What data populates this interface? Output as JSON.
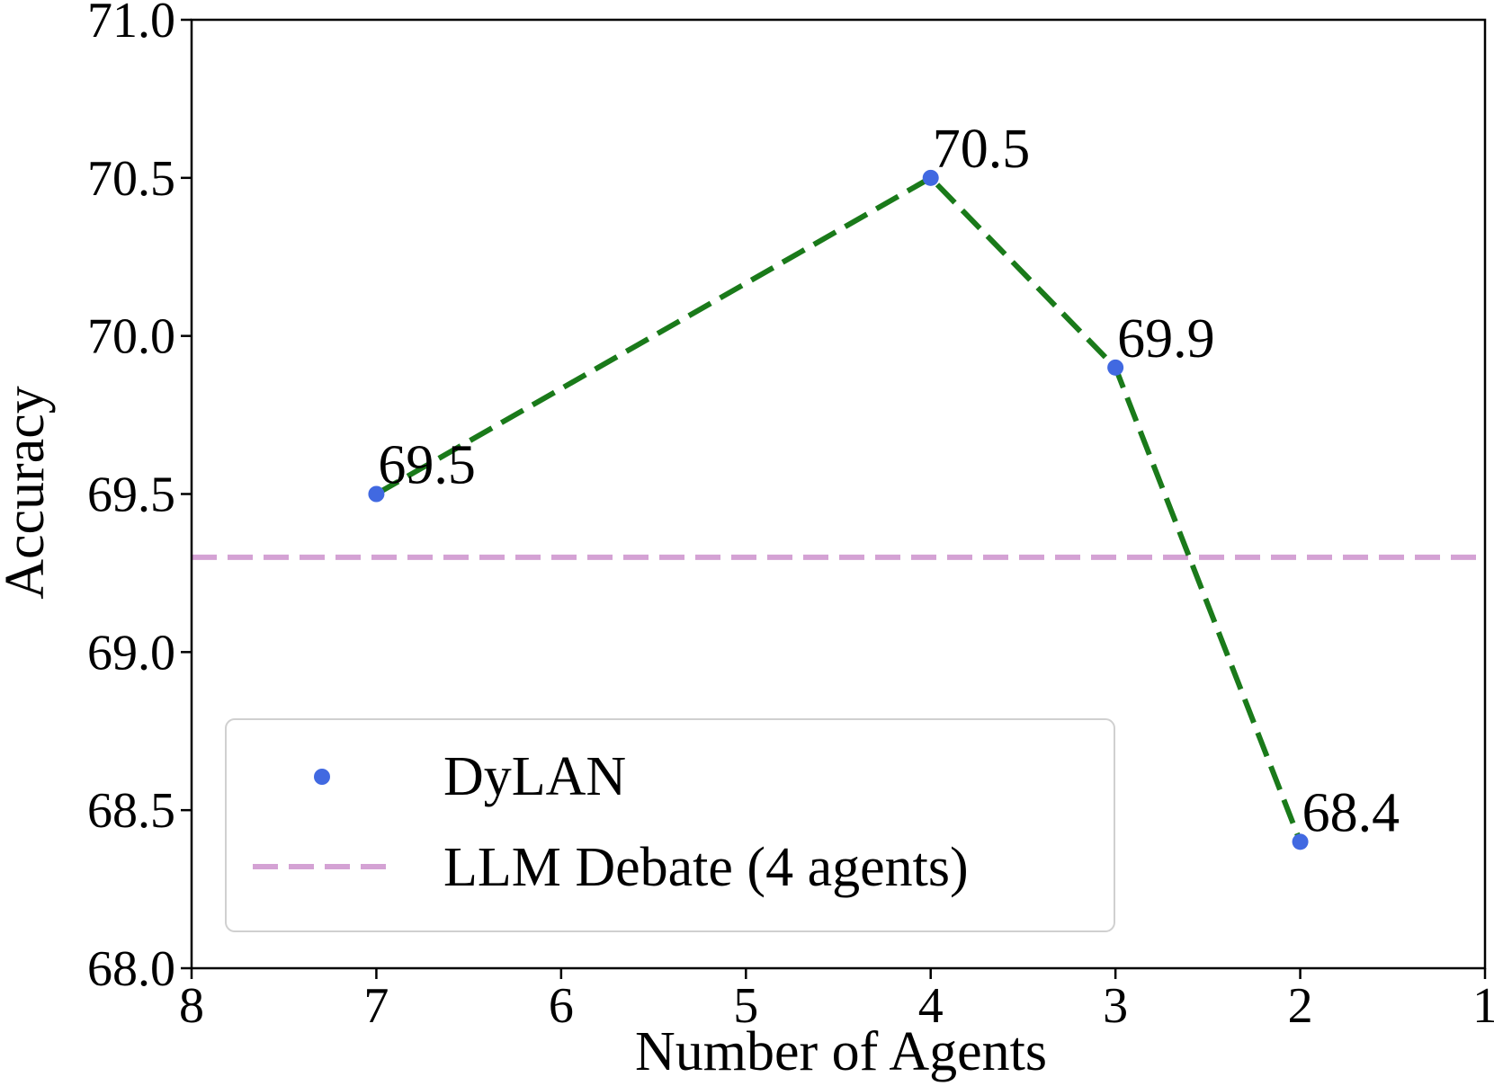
{
  "chart_data": {
    "type": "line",
    "xlabel": "Number of Agents",
    "ylabel": "Accuracy",
    "xlim": [
      8,
      1
    ],
    "ylim": [
      68.0,
      71.0
    ],
    "x_ticks": [
      8,
      7,
      6,
      5,
      4,
      3,
      2,
      1
    ],
    "y_ticks": [
      68.0,
      68.5,
      69.0,
      69.5,
      70.0,
      70.5,
      71.0
    ],
    "y_tick_labels": [
      "68.0",
      "68.5",
      "69.0",
      "69.5",
      "70.0",
      "70.5",
      "71.0"
    ],
    "grid": false,
    "legend_position": "lower-left",
    "series": [
      {
        "name": "DyLAN",
        "x": [
          7,
          4,
          3,
          2
        ],
        "y": [
          69.5,
          70.5,
          69.9,
          68.4
        ],
        "data_labels": [
          "69.5",
          "70.5",
          "69.9",
          "68.4"
        ],
        "marker_color": "#4169e1",
        "line_color": "#1a7a1a",
        "line_style": "dashed"
      },
      {
        "name": "LLM Debate (4 agents)",
        "type": "hline",
        "y": 69.3,
        "line_color": "#d4a2d4",
        "line_style": "dashed"
      }
    ]
  }
}
